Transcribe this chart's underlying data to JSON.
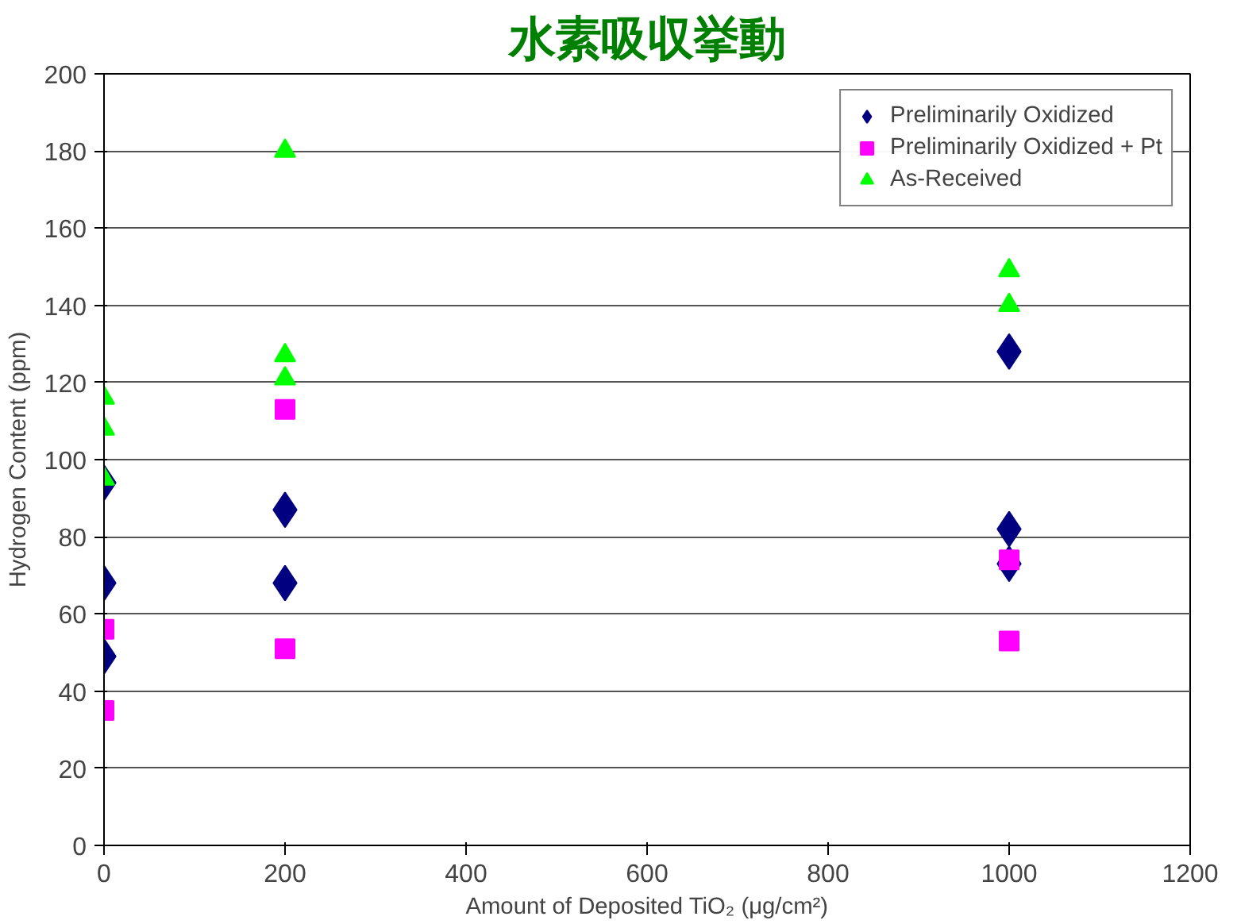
{
  "chart_data": {
    "type": "scatter",
    "title": "水素吸収挙動",
    "xlabel": "Amount of Deposited TiO₂ (μg/cm²)",
    "ylabel": "Hydrogen Content (ppm)",
    "xlim": [
      0,
      1200
    ],
    "ylim": [
      0,
      200
    ],
    "xticks": [
      0,
      200,
      400,
      600,
      800,
      1000,
      1200
    ],
    "yticks": [
      0,
      20,
      40,
      60,
      80,
      100,
      120,
      140,
      160,
      180,
      200
    ],
    "grid": "y",
    "legend": "top right",
    "series": [
      {
        "name": "Preliminarily Oxidized",
        "color": "#000080",
        "marker": "diamond",
        "x": [
          0,
          0,
          0,
          200,
          200,
          1000,
          1000,
          1000
        ],
        "values": [
          94,
          68,
          49,
          87,
          68,
          128,
          82,
          73
        ]
      },
      {
        "name": "Preliminarily Oxidized + Pt",
        "color": "#ff00ff",
        "marker": "square",
        "x": [
          0,
          0,
          200,
          200,
          1000,
          1000
        ],
        "values": [
          56,
          35,
          113,
          51,
          74,
          53
        ]
      },
      {
        "name": "As-Received",
        "color": "#00ff00",
        "marker": "triangle",
        "x": [
          0,
          0,
          0,
          200,
          200,
          200,
          1000,
          1000
        ],
        "values": [
          116,
          108,
          95,
          180,
          127,
          121,
          149,
          140
        ]
      }
    ]
  }
}
